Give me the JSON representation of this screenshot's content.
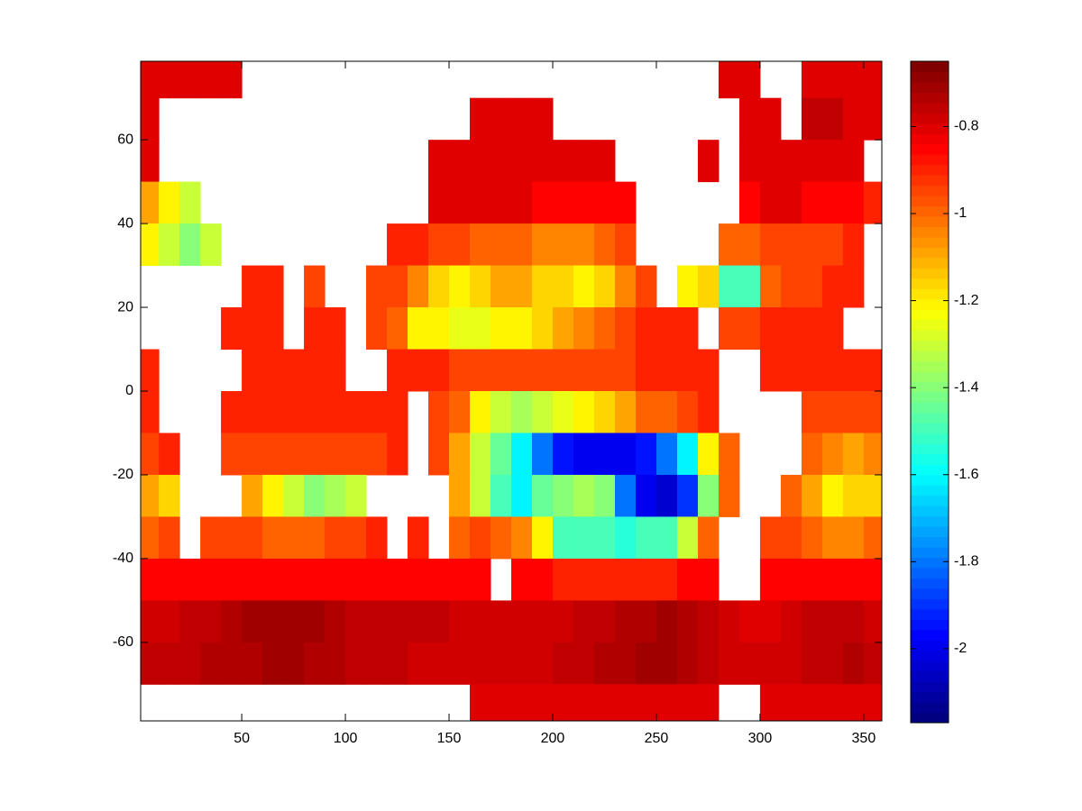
{
  "chart_data": {
    "type": "heatmap",
    "colormap": "jet",
    "x": [
      5,
      15,
      25,
      35,
      45,
      55,
      65,
      75,
      85,
      95,
      105,
      115,
      125,
      135,
      145,
      155,
      165,
      175,
      185,
      195,
      205,
      215,
      225,
      235,
      245,
      255,
      265,
      275,
      285,
      295,
      305,
      315,
      325,
      335,
      345,
      355
    ],
    "y": [
      75,
      65,
      55,
      45,
      35,
      25,
      15,
      5,
      -5,
      -15,
      -25,
      -35,
      -45,
      -55,
      -65,
      -75
    ],
    "z": [
      [
        -0.8,
        -0.8,
        -0.8,
        -0.8,
        -0.8,
        null,
        null,
        null,
        null,
        null,
        null,
        null,
        null,
        null,
        null,
        null,
        null,
        null,
        null,
        null,
        null,
        null,
        null,
        null,
        null,
        null,
        null,
        null,
        -0.8,
        -0.8,
        null,
        null,
        -0.8,
        -0.8,
        -0.8,
        -0.8
      ],
      [
        -0.8,
        null,
        null,
        null,
        null,
        null,
        null,
        null,
        null,
        null,
        null,
        null,
        null,
        null,
        null,
        null,
        -0.8,
        -0.8,
        -0.8,
        -0.8,
        null,
        null,
        null,
        null,
        null,
        null,
        null,
        null,
        null,
        -0.8,
        -0.8,
        null,
        -0.75,
        -0.75,
        -0.8,
        -0.8
      ],
      [
        -0.8,
        null,
        null,
        null,
        null,
        null,
        null,
        null,
        null,
        null,
        null,
        null,
        null,
        null,
        -0.8,
        -0.8,
        -0.8,
        -0.8,
        -0.8,
        -0.8,
        -0.8,
        -0.8,
        -0.8,
        null,
        null,
        null,
        null,
        -0.8,
        null,
        -0.8,
        -0.8,
        -0.8,
        -0.8,
        -0.8,
        -0.8,
        null
      ],
      [
        -1.1,
        -1.2,
        -1.3,
        null,
        null,
        null,
        null,
        null,
        null,
        null,
        null,
        null,
        null,
        null,
        -0.8,
        -0.8,
        -0.8,
        -0.8,
        -0.8,
        -0.85,
        -0.85,
        -0.85,
        -0.85,
        -0.85,
        null,
        null,
        null,
        null,
        null,
        -0.85,
        -0.8,
        -0.8,
        -0.85,
        -0.85,
        -0.85,
        -0.9
      ],
      [
        -1.2,
        -1.3,
        -1.4,
        -1.3,
        null,
        null,
        null,
        null,
        null,
        null,
        null,
        null,
        -0.9,
        -0.9,
        -0.95,
        -0.95,
        -1.0,
        -1.0,
        -1.0,
        -1.05,
        -1.05,
        -1.05,
        -1.0,
        -0.95,
        null,
        null,
        null,
        null,
        -1.0,
        -1.0,
        -0.95,
        -0.95,
        -0.95,
        -0.95,
        -0.9,
        null
      ],
      [
        null,
        null,
        null,
        null,
        null,
        -0.9,
        -0.9,
        null,
        -0.95,
        null,
        null,
        -0.95,
        -0.95,
        -1.05,
        -1.15,
        -1.2,
        -1.15,
        -1.1,
        -1.1,
        -1.15,
        -1.15,
        -1.2,
        -1.15,
        -1.05,
        -0.95,
        null,
        -1.2,
        -1.15,
        -1.5,
        -1.5,
        -1.0,
        -0.95,
        -0.95,
        -0.9,
        -0.9,
        null
      ],
      [
        null,
        null,
        null,
        null,
        -0.9,
        -0.9,
        -0.9,
        null,
        -0.9,
        -0.9,
        null,
        -0.95,
        -1.0,
        -1.2,
        -1.2,
        -1.25,
        -1.25,
        -1.2,
        -1.2,
        -1.15,
        -1.1,
        -1.05,
        -1.0,
        -0.95,
        -0.9,
        -0.9,
        -0.9,
        null,
        -0.95,
        -0.95,
        -0.9,
        -0.9,
        -0.9,
        -0.9,
        null,
        null
      ],
      [
        -0.9,
        null,
        null,
        null,
        null,
        -0.9,
        -0.9,
        -0.9,
        -0.9,
        -0.9,
        null,
        null,
        -0.9,
        -0.9,
        -0.9,
        -0.95,
        -0.95,
        -0.95,
        -0.95,
        -0.95,
        -0.95,
        -0.95,
        -0.95,
        -0.95,
        -0.9,
        -0.9,
        -0.9,
        -0.9,
        null,
        null,
        -0.9,
        -0.9,
        -0.9,
        -0.9,
        -0.9,
        -0.9
      ],
      [
        -0.9,
        null,
        null,
        null,
        -0.9,
        -0.9,
        -0.9,
        -0.9,
        -0.9,
        -0.9,
        -0.9,
        -0.9,
        -0.9,
        null,
        -0.95,
        -1.0,
        -1.2,
        -1.3,
        -1.35,
        -1.3,
        -1.25,
        -1.2,
        -1.15,
        -1.1,
        -1.0,
        -1.0,
        -0.95,
        -0.9,
        null,
        null,
        null,
        null,
        -0.95,
        -0.95,
        -0.95,
        -0.95
      ],
      [
        -0.95,
        -0.9,
        null,
        null,
        -0.95,
        -0.95,
        -0.95,
        -0.95,
        -0.95,
        -0.95,
        -0.95,
        -0.95,
        -0.9,
        null,
        -0.95,
        -1.1,
        -1.3,
        -1.45,
        -1.6,
        -1.8,
        -1.95,
        -2.0,
        -2.0,
        -2.0,
        -1.95,
        -1.8,
        -1.6,
        -1.2,
        -1.0,
        null,
        null,
        null,
        -1.0,
        -1.05,
        -1.1,
        -1.05
      ],
      [
        -1.1,
        -1.15,
        null,
        null,
        null,
        -1.1,
        -1.2,
        -1.3,
        -1.4,
        -1.35,
        -1.3,
        null,
        null,
        null,
        null,
        -1.1,
        -1.3,
        -1.5,
        -1.6,
        -1.45,
        -1.4,
        -1.35,
        -1.4,
        -1.8,
        -2.0,
        -2.05,
        -1.9,
        -1.4,
        -1.0,
        null,
        null,
        -1.0,
        -1.1,
        -1.2,
        -1.15,
        -1.15
      ],
      [
        -1.0,
        -0.95,
        null,
        -0.95,
        -0.95,
        -0.95,
        -1.0,
        -1.0,
        -1.0,
        -0.95,
        -0.95,
        -0.9,
        null,
        -0.9,
        null,
        -1.0,
        -0.95,
        -1.0,
        -1.05,
        -1.2,
        -1.5,
        -1.5,
        -1.5,
        -1.55,
        -1.5,
        -1.5,
        -1.3,
        -1.0,
        null,
        null,
        -0.95,
        -0.95,
        -1.0,
        -1.05,
        -1.05,
        -1.0
      ],
      [
        -0.85,
        -0.85,
        -0.85,
        -0.85,
        -0.85,
        -0.85,
        -0.85,
        -0.85,
        -0.85,
        -0.85,
        -0.85,
        -0.85,
        -0.85,
        -0.85,
        -0.85,
        -0.85,
        -0.85,
        null,
        -0.85,
        -0.85,
        -0.9,
        -0.9,
        -0.9,
        -0.9,
        -0.9,
        -0.9,
        -0.85,
        -0.85,
        null,
        null,
        -0.85,
        -0.85,
        -0.85,
        -0.85,
        -0.85,
        -0.85
      ],
      [
        -0.78,
        -0.78,
        -0.76,
        -0.75,
        -0.73,
        -0.72,
        -0.7,
        -0.7,
        -0.72,
        -0.74,
        -0.75,
        -0.75,
        -0.76,
        -0.75,
        -0.76,
        -0.77,
        -0.78,
        -0.78,
        -0.78,
        -0.77,
        -0.77,
        -0.76,
        -0.75,
        -0.74,
        -0.73,
        -0.72,
        -0.73,
        -0.75,
        -0.78,
        -0.8,
        -0.8,
        -0.78,
        -0.76,
        -0.75,
        -0.75,
        -0.77
      ],
      [
        -0.76,
        -0.76,
        -0.75,
        -0.74,
        -0.74,
        -0.73,
        -0.72,
        -0.72,
        -0.73,
        -0.74,
        -0.75,
        -0.76,
        -0.76,
        -0.77,
        -0.77,
        -0.77,
        -0.78,
        -0.78,
        -0.78,
        -0.77,
        -0.76,
        -0.75,
        -0.74,
        -0.73,
        -0.72,
        -0.72,
        -0.73,
        -0.75,
        -0.77,
        -0.78,
        -0.78,
        -0.77,
        -0.76,
        -0.75,
        -0.74,
        -0.75
      ],
      [
        null,
        null,
        null,
        null,
        null,
        null,
        null,
        null,
        null,
        null,
        null,
        null,
        null,
        null,
        null,
        null,
        -0.8,
        -0.8,
        -0.8,
        -0.8,
        -0.8,
        -0.8,
        -0.8,
        -0.8,
        -0.8,
        -0.8,
        -0.8,
        -0.8,
        null,
        null,
        -0.8,
        -0.8,
        -0.8,
        -0.8,
        -0.8,
        -0.8
      ]
    ],
    "xlim": [
      1.25,
      358.75
    ],
    "ylim": [
      -78.75,
      78.75
    ],
    "xticks": [
      50,
      100,
      150,
      200,
      250,
      300,
      350
    ],
    "yticks": [
      -60,
      -40,
      -20,
      0,
      20,
      40,
      60
    ],
    "clim": [
      -2.17,
      -0.65
    ],
    "cticks": [
      -2,
      -1.8,
      -1.6,
      -1.4,
      -1.2,
      -1,
      -0.8
    ]
  }
}
